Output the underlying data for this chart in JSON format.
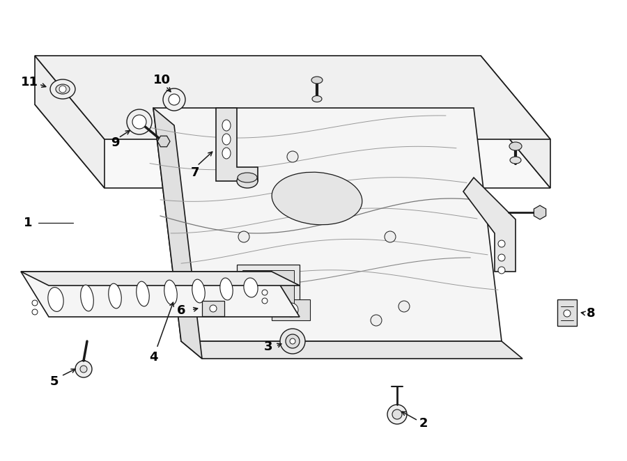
{
  "background_color": "#ffffff",
  "line_color": "#1a1a1a",
  "label_color": "#000000",
  "fig_width": 9.0,
  "fig_height": 6.62,
  "dpi": 100
}
